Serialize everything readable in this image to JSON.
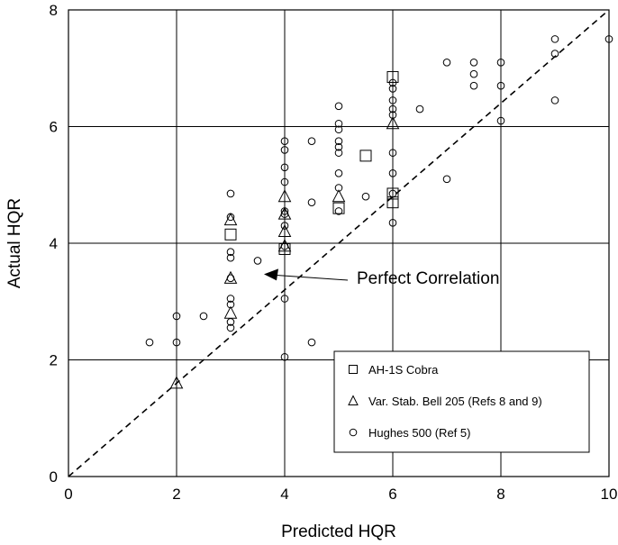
{
  "chart_data": {
    "type": "scatter",
    "xlabel": "Predicted HQR",
    "ylabel": "Actual HQR",
    "xlim": [
      0,
      10
    ],
    "ylim": [
      0,
      8
    ],
    "x_ticks": [
      "0",
      "2",
      "4",
      "6",
      "8",
      "10"
    ],
    "y_ticks": [
      "0",
      "2",
      "4",
      "6",
      "8"
    ],
    "grid": true,
    "legend_position": "bottom-right",
    "reference_line": {
      "style": "dashed",
      "from": [
        0,
        0
      ],
      "to": [
        10,
        8
      ]
    },
    "annotation": {
      "text": "Perfect Correlation",
      "arrow_target": [
        3.5,
        3.5
      ]
    },
    "series": [
      {
        "name": "AH-1S Cobra",
        "marker": "square",
        "points": [
          [
            3,
            4.15
          ],
          [
            4,
            3.9
          ],
          [
            5,
            4.6
          ],
          [
            5.5,
            5.5
          ],
          [
            6,
            6.85
          ],
          [
            6,
            4.85
          ],
          [
            6,
            4.7
          ]
        ]
      },
      {
        "name": "Var. Stab. Bell 205 (Refs 8 and 9)",
        "marker": "triangle",
        "points": [
          [
            2,
            1.6
          ],
          [
            3,
            2.8
          ],
          [
            3,
            3.4
          ],
          [
            3,
            4.4
          ],
          [
            4,
            3.95
          ],
          [
            4,
            4.2
          ],
          [
            4,
            4.5
          ],
          [
            4,
            4.8
          ],
          [
            5,
            4.8
          ],
          [
            6,
            6.05
          ]
        ]
      },
      {
        "name": "Hughes 500 (Ref 5)",
        "marker": "circle",
        "points": [
          [
            1.5,
            2.3
          ],
          [
            2,
            2.3
          ],
          [
            2,
            2.75
          ],
          [
            2.5,
            2.75
          ],
          [
            3,
            2.55
          ],
          [
            3,
            2.65
          ],
          [
            3,
            2.95
          ],
          [
            3,
            3.05
          ],
          [
            3,
            3.4
          ],
          [
            3,
            3.75
          ],
          [
            3,
            3.85
          ],
          [
            3,
            4.45
          ],
          [
            3,
            4.85
          ],
          [
            3.5,
            3.7
          ],
          [
            4,
            2.05
          ],
          [
            4,
            3.05
          ],
          [
            4,
            3.95
          ],
          [
            4,
            4.3
          ],
          [
            4,
            4.5
          ],
          [
            4,
            4.55
          ],
          [
            4,
            5.05
          ],
          [
            4,
            5.3
          ],
          [
            4,
            5.6
          ],
          [
            4,
            5.75
          ],
          [
            4.5,
            2.3
          ],
          [
            4.5,
            4.7
          ],
          [
            4.5,
            5.75
          ],
          [
            5,
            4.55
          ],
          [
            5,
            4.95
          ],
          [
            5,
            5.2
          ],
          [
            5,
            5.55
          ],
          [
            5,
            5.65
          ],
          [
            5,
            5.75
          ],
          [
            5,
            5.95
          ],
          [
            5,
            6.05
          ],
          [
            5,
            6.35
          ],
          [
            5.5,
            4.8
          ],
          [
            6,
            4.35
          ],
          [
            6,
            4.85
          ],
          [
            6,
            5.2
          ],
          [
            6,
            5.55
          ],
          [
            6,
            6.2
          ],
          [
            6,
            6.3
          ],
          [
            6,
            6.45
          ],
          [
            6,
            6.65
          ],
          [
            6,
            6.75
          ],
          [
            6.5,
            6.3
          ],
          [
            7,
            5.1
          ],
          [
            7,
            7.1
          ],
          [
            7.5,
            6.7
          ],
          [
            7.5,
            6.9
          ],
          [
            7.5,
            7.1
          ],
          [
            8,
            6.1
          ],
          [
            8,
            6.7
          ],
          [
            8,
            7.1
          ],
          [
            9,
            6.45
          ],
          [
            9,
            7.25
          ],
          [
            9,
            7.5
          ],
          [
            10,
            7.5
          ]
        ]
      }
    ]
  }
}
